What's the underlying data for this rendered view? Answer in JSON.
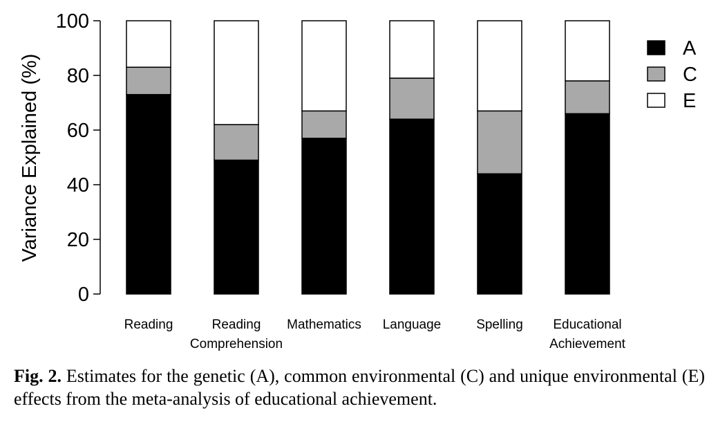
{
  "chart_data": {
    "type": "bar",
    "stacked": true,
    "categories": [
      [
        "Reading"
      ],
      [
        "Reading",
        "Comprehension"
      ],
      [
        "Mathematics"
      ],
      [
        "Language"
      ],
      [
        "Spelling"
      ],
      [
        "Educational",
        "Achievement"
      ]
    ],
    "series": [
      {
        "name": "A",
        "color": "#000000",
        "values": [
          73,
          49,
          57,
          64,
          44,
          66
        ]
      },
      {
        "name": "C",
        "color": "#a9a9a9",
        "values": [
          10,
          13,
          10,
          15,
          23,
          12
        ]
      },
      {
        "name": "E",
        "color": "#ffffff",
        "values": [
          17,
          38,
          33,
          21,
          33,
          22
        ]
      }
    ],
    "ylabel": "Variance Explained (%)",
    "xlabel": "",
    "ylim": [
      0,
      100
    ],
    "yticks": [
      0,
      20,
      40,
      60,
      80,
      100
    ],
    "grid": false,
    "legend_position": "top-right"
  },
  "caption": {
    "label": "Fig. 2.",
    "text": "Estimates for the genetic (A), common environmental (C) and unique environmental (E) effects from the meta-analysis of educational achievement."
  }
}
